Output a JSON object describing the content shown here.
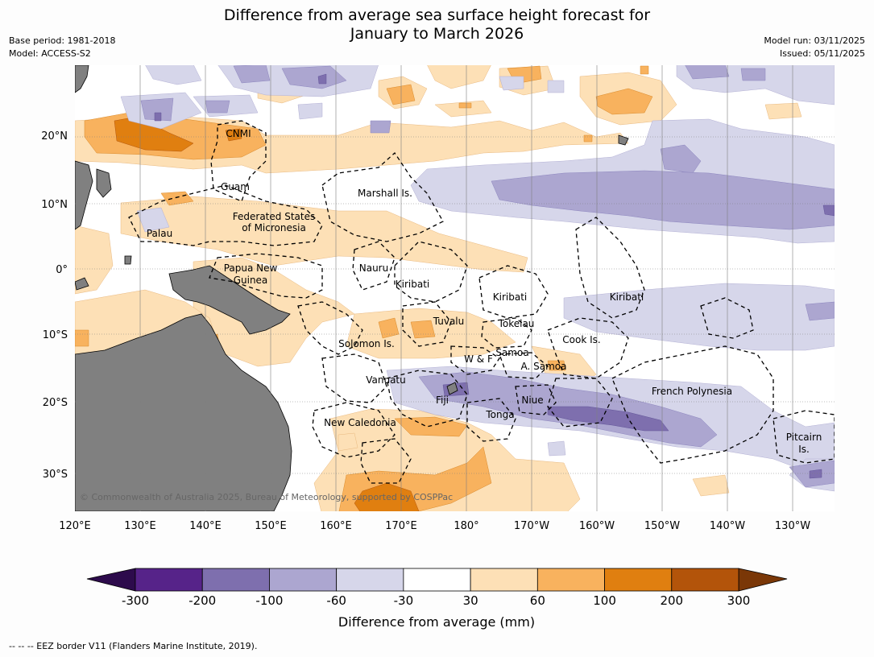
{
  "title_line1": "Difference from average sea surface height forecast for",
  "title_line2": "January to March 2026",
  "meta_left": {
    "base_period": "Base period: 1981-2018",
    "model": "Model: ACCESS-S2"
  },
  "meta_right": {
    "model_run": "Model run: 03/11/2025",
    "issued": "Issued: 05/11/2025"
  },
  "lat_labels": [
    "20°N",
    "10°N",
    "0°",
    "10°S",
    "20°S",
    "30°S"
  ],
  "lon_labels": [
    "120°E",
    "130°E",
    "140°E",
    "150°E",
    "160°E",
    "170°E",
    "180°",
    "170°W",
    "160°W",
    "150°W",
    "140°W",
    "130°W"
  ],
  "places": {
    "cnmi": "CNMI",
    "guam": "Guam",
    "marshall": "Marshall Is.",
    "fsm1": "Federated States",
    "fsm2": "of Micronesia",
    "palau": "Palau",
    "png1": "Papua New",
    "png2": "Guinea",
    "nauru": "Nauru",
    "kiribati_w": "Kiribati",
    "kiribati_c": "Kiribati",
    "kiribati_e": "Kiribati",
    "tuvalu": "Tuvalu",
    "tokelau": "Tokelau",
    "cook": "Cook Is.",
    "solomon": "Solomon Is.",
    "wf": "W & F",
    "samoa": "Samoa",
    "asamoa": "A. Samoa",
    "vanuatu": "Vanuatu",
    "fiji": "Fiji",
    "niue": "Niue",
    "tonga": "Tonga",
    "newcal": "New Caledonia",
    "frpoly": "French Polynesia",
    "pitcairn1": "Pitcairn",
    "pitcairn2": "Is."
  },
  "copyright": "© Commonwealth of Australia 2025, Bureau of Meteorology, supported by COSPPac",
  "colorbar": {
    "ticks": [
      "-300",
      "-200",
      "-100",
      "-60",
      "-30",
      "30",
      "60",
      "100",
      "200",
      "300"
    ],
    "colors": [
      "#562389",
      "#7e6fae",
      "#aca6d0",
      "#d6d6ea",
      "#ffffff",
      "#fde0b6",
      "#f8b25e",
      "#e07f10",
      "#b3540a"
    ],
    "low_extend": "#2d0b4c",
    "high_extend": "#7a3707",
    "label": "Difference from average (mm)"
  },
  "colors": {
    "land": "#808080",
    "ocean": "#ffffff"
  },
  "footer": "--  --  -- EEZ border V11 (Flanders Marine Institute, 2019)."
}
